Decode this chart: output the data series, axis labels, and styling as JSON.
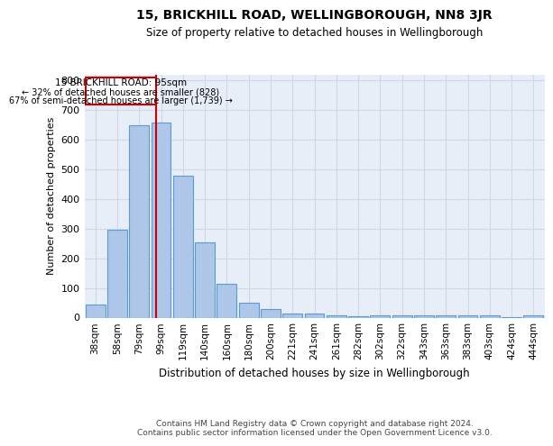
{
  "title": "15, BRICKHILL ROAD, WELLINGBOROUGH, NN8 3JR",
  "subtitle": "Size of property relative to detached houses in Wellingborough",
  "xlabel": "Distribution of detached houses by size in Wellingborough",
  "ylabel": "Number of detached properties",
  "footer_line1": "Contains HM Land Registry data © Crown copyright and database right 2024.",
  "footer_line2": "Contains public sector information licensed under the Open Government Licence v3.0.",
  "categories": [
    "38sqm",
    "58sqm",
    "79sqm",
    "99sqm",
    "119sqm",
    "140sqm",
    "160sqm",
    "180sqm",
    "200sqm",
    "221sqm",
    "241sqm",
    "261sqm",
    "282sqm",
    "302sqm",
    "322sqm",
    "343sqm",
    "363sqm",
    "383sqm",
    "403sqm",
    "424sqm",
    "444sqm"
  ],
  "values": [
    45,
    295,
    648,
    658,
    478,
    253,
    115,
    50,
    28,
    15,
    15,
    8,
    5,
    8,
    8,
    8,
    8,
    8,
    8,
    3,
    8
  ],
  "bar_color": "#aec6e8",
  "bar_edge_color": "#5b9bd5",
  "grid_color": "#d0d8e8",
  "background_color": "#e8eef8",
  "red_line_x": 2.78,
  "annotation_text_line1": "15 BRICKHILL ROAD: 95sqm",
  "annotation_text_line2": "← 32% of detached houses are smaller (828)",
  "annotation_text_line3": "67% of semi-detached houses are larger (1,739) →",
  "annotation_box_color": "#cc0000",
  "ylim": [
    0,
    820
  ],
  "yticks": [
    0,
    100,
    200,
    300,
    400,
    500,
    600,
    700,
    800
  ],
  "fig_width": 6.0,
  "fig_height": 5.0,
  "dpi": 100
}
